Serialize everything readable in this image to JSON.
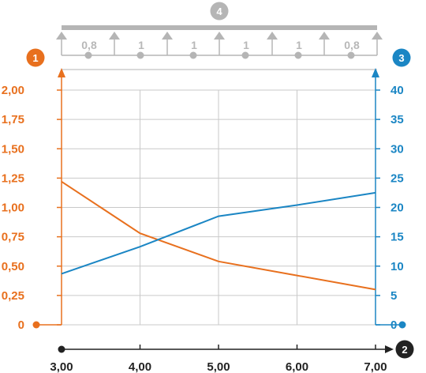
{
  "chart_data": {
    "type": "line",
    "x": [
      3.0,
      4.0,
      5.0,
      6.0,
      7.0
    ],
    "xlim": [
      3.0,
      7.0
    ],
    "x_ticks": [
      "3,00",
      "4,00",
      "5,00",
      "6,00",
      "7,00"
    ],
    "left_axis": {
      "badge": "1",
      "color": "#e8701e",
      "ylim": [
        0,
        2.0
      ],
      "ticks": [
        "2,00",
        "1,75",
        "1,50",
        "1,25",
        "1,00",
        "0,75",
        "0,50",
        "0,25",
        "0"
      ]
    },
    "right_axis": {
      "badge": "3",
      "color": "#1b86c4",
      "ylim": [
        0,
        40
      ],
      "ticks": [
        "40",
        "35",
        "30",
        "25",
        "20",
        "15",
        "10",
        "5",
        "0"
      ]
    },
    "x_axis_badge": "2",
    "series": [
      {
        "axis": "left",
        "color": "#e8701e",
        "values": [
          1.22,
          0.78,
          0.54,
          0.42,
          0.3
        ]
      },
      {
        "axis": "right",
        "color": "#1b86c4",
        "values": [
          8.7,
          13.3,
          18.5,
          20.4,
          22.5
        ]
      }
    ],
    "grid": true,
    "beam": {
      "badge": "4",
      "span_ratios": [
        "0,8",
        "1",
        "1",
        "1",
        "1",
        "0,8"
      ]
    }
  }
}
